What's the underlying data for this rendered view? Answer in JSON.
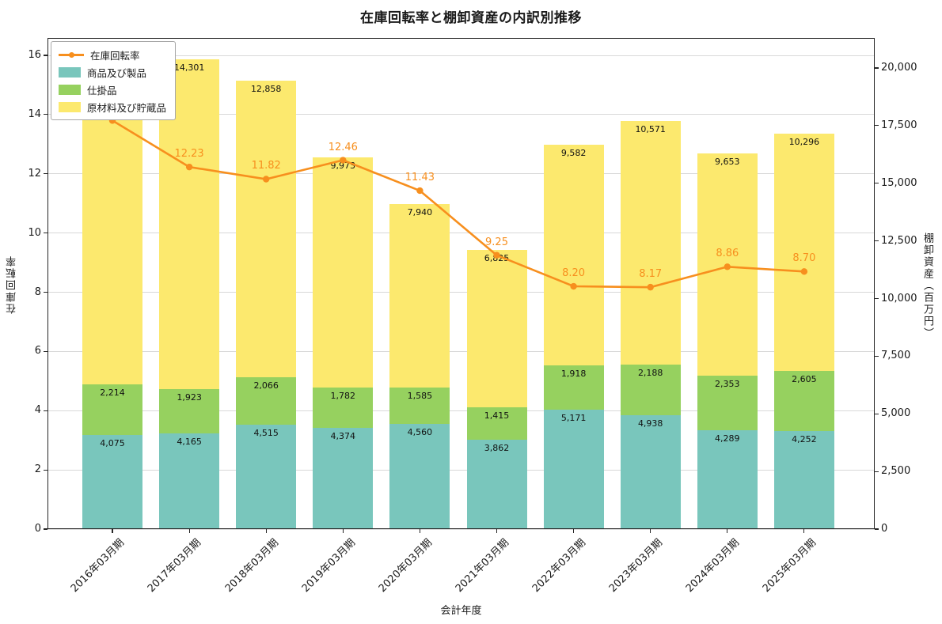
{
  "title": "在庫回転率と棚卸資産の内訳別推移",
  "axes": {
    "x_label": "会計年度",
    "y_left_label": "在庫回転率",
    "y_right_label": "棚卸資産（百万円）",
    "y_left_ticks": [
      0,
      2,
      4,
      6,
      8,
      10,
      12,
      14,
      16
    ],
    "y_right_ticks": [
      0,
      2500,
      5000,
      7500,
      10000,
      12500,
      15000,
      17500,
      20000
    ]
  },
  "chart_data": {
    "type": "bar+line (stacked bars on right axis, line on left axis)",
    "categories": [
      "2016年03月期",
      "2017年03月期",
      "2018年03月期",
      "2019年03月期",
      "2020年03月期",
      "2021年03月期",
      "2022年03月期",
      "2023年03月期",
      "2024年03月期",
      "2025年03月期"
    ],
    "bar_series": [
      {
        "name": "商品及び製品",
        "color": "#79c6bc",
        "values": [
          4075,
          4165,
          4515,
          4374,
          4560,
          3862,
          5171,
          4938,
          4289,
          4252
        ]
      },
      {
        "name": "仕掛品",
        "color": "#96d15f",
        "values": [
          2214,
          1923,
          2066,
          1782,
          1585,
          1415,
          1918,
          2188,
          2353,
          2605
        ]
      },
      {
        "name": "原材料及び貯蔵品",
        "color": "#fce96e",
        "values": [
          12500,
          14301,
          12858,
          9973,
          7940,
          6825,
          9582,
          10571,
          9653,
          10296
        ]
      }
    ],
    "line_series": {
      "name": "在庫回転率",
      "color": "#f78f1e",
      "values": [
        13.8,
        12.23,
        11.82,
        12.46,
        11.43,
        9.25,
        8.2,
        8.17,
        8.86,
        8.7
      ]
    },
    "y_left_range": [
      0,
      16.6
    ],
    "y_right_range": [
      0,
      21300
    ],
    "grid": true,
    "legend_position": "upper left",
    "bar_value_labels": "comma-formatted, inside top of each segment",
    "line_value_labels": "two decimals, above each marker"
  }
}
